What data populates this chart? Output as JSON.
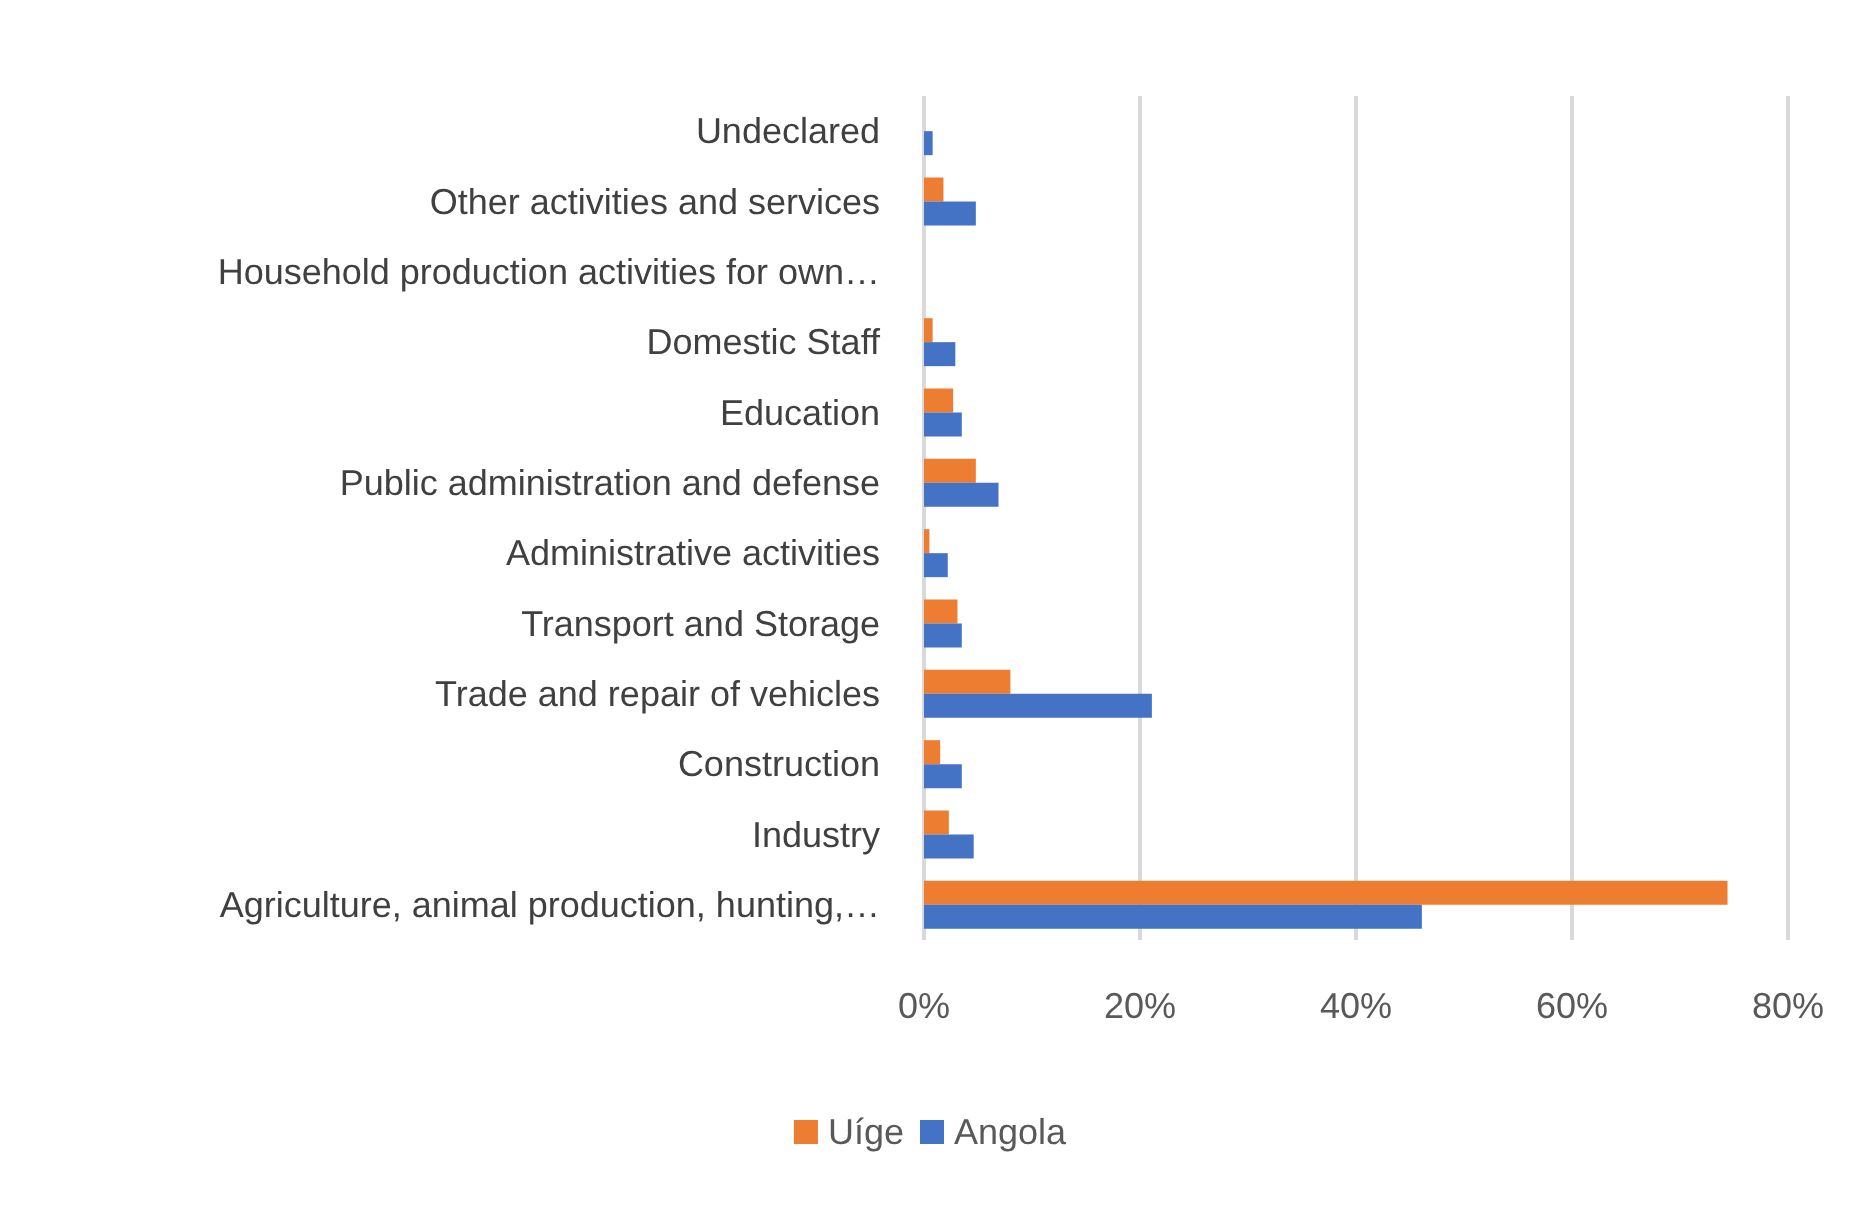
{
  "chart_data": {
    "type": "bar",
    "orientation": "horizontal",
    "categories": [
      "Undeclared",
      "Other activities and services",
      "Household production activities for own…",
      "Domestic Staff",
      "Education",
      "Public administration and defense",
      "Administrative activities",
      "Transport and Storage",
      "Trade and repair of vehicles",
      "Construction",
      "Industry",
      "Agriculture, animal production, hunting,…"
    ],
    "series": [
      {
        "name": "Uíge",
        "color": "#ed7d31",
        "values": [
          0,
          1.8,
          0,
          0.8,
          2.7,
          4.8,
          0.5,
          3.1,
          8.0,
          1.5,
          2.3,
          74.4
        ]
      },
      {
        "name": "Angola",
        "color": "#4472c4",
        "values": [
          0.8,
          4.8,
          0,
          2.9,
          3.5,
          6.9,
          2.2,
          3.5,
          21.1,
          3.5,
          4.6,
          46.1
        ]
      }
    ],
    "xlim": [
      0,
      80
    ],
    "xticks": [
      {
        "value": 0,
        "label": "0%"
      },
      {
        "value": 20,
        "label": "20%"
      },
      {
        "value": 40,
        "label": "40%"
      },
      {
        "value": 60,
        "label": "60%"
      },
      {
        "value": 80,
        "label": "80%"
      }
    ],
    "grid": "x",
    "legend": "bottom"
  }
}
